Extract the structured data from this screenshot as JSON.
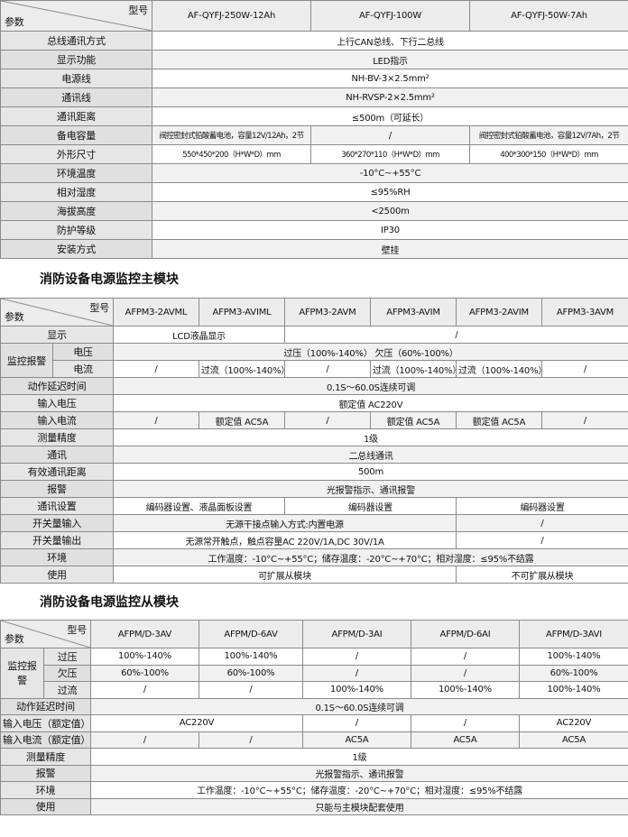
{
  "tables": [
    {
      "model_label": "型号",
      "param_label": "参数",
      "models": [
        "AF-QYFJ-250W-12Ah",
        "AF-QYFJ-100W",
        "AF-QYFJ-50W-7Ah"
      ],
      "rows": [
        {
          "label": "总线通讯方式",
          "cells": [
            "上行CAN总线、下行二总线"
          ]
        },
        {
          "label": "显示功能",
          "cells": [
            "LED指示"
          ]
        },
        {
          "label": "电源线",
          "cells": [
            "NH-BV-3×2.5mm²"
          ]
        },
        {
          "label": "通讯线",
          "cells": [
            "NH-RVSP-2×2.5mm²"
          ]
        },
        {
          "label": "通讯距离",
          "cells": [
            "≤500m（可延长）"
          ]
        },
        {
          "label": "备电容量",
          "cells": [
            "阀控密封式铅酸蓄电池，容量12V/12Ah，2节",
            "/",
            "阀控密封式铅酸蓄电池，容量12V/7Ah，2节"
          ]
        },
        {
          "label": "外形尺寸",
          "cells": [
            "550*450*200（H*W*D）mm",
            "360*270*110（H*W*D）mm",
            "400*300*150（H*W*D）mm"
          ]
        },
        {
          "label": "环境温度",
          "cells": [
            "-10°C~+55°C"
          ]
        },
        {
          "label": "相对湿度",
          "cells": [
            "≤95%RH"
          ]
        },
        {
          "label": "海拔高度",
          "cells": [
            "<2500m"
          ]
        },
        {
          "label": "防护等级",
          "cells": [
            "IP30"
          ]
        },
        {
          "label": "安装方式",
          "cells": [
            "壁挂"
          ]
        }
      ]
    },
    {
      "title": "消防设备电源监控主模块",
      "model_label": "型号",
      "param_label": "参数",
      "models": [
        "AFPM3-2AVML",
        "AFPM3-AVIML",
        "AFPM3-2AVM",
        "AFPM3-AVIM",
        "AFPM3-2AVIM",
        "AFPM3-3AVM"
      ],
      "rows": [
        {
          "label": "显示",
          "cells": [
            "LCD液晶显示",
            "/"
          ]
        },
        {
          "group": "监控报警",
          "items": [
            {
              "label": "电压",
              "cells": [
                "过压（100%-140%） 欠压（60%-100%）"
              ]
            },
            {
              "label": "电流",
              "cells": [
                "/",
                "过流（100%-140%）",
                "/",
                "过流（100%-140%）",
                "过流（100%-140%）",
                "/"
              ]
            }
          ]
        },
        {
          "label": "动作延迟时间",
          "cells": [
            "0.1S～60.0S连续可调"
          ]
        },
        {
          "label": "输入电压",
          "cells": [
            "额定值 AC220V"
          ]
        },
        {
          "label": "输入电流",
          "cells": [
            "/",
            "额定值 AC5A",
            "/",
            "额定值 AC5A",
            "额定值 AC5A",
            "/"
          ]
        },
        {
          "label": "测量精度",
          "cells": [
            "1级"
          ]
        },
        {
          "label": "通讯",
          "cells": [
            "二总线通讯"
          ]
        },
        {
          "label": "有效通讯距离",
          "cells": [
            "500m"
          ]
        },
        {
          "label": "报警",
          "cells": [
            "光报警指示、通讯报警"
          ]
        },
        {
          "label": "通讯设置",
          "cells": [
            "编码器设置、液晶面板设置",
            "编码器设置",
            "编码器设置"
          ]
        },
        {
          "label": "开关量输入",
          "cells": [
            "无源干接点输入方式:内置电源",
            "/"
          ]
        },
        {
          "label": "开关量输出",
          "cells": [
            "无源常开触点，触点容量AC 220V/1A,DC 30V/1A",
            "/"
          ]
        },
        {
          "label": "环境",
          "cells": [
            "工作温度：-10°C~+55°C；储存温度：-20°C~+70°C；相对湿度：≤95%不结露"
          ]
        },
        {
          "label": "使用",
          "cells": [
            "可扩展从模块",
            "不可扩展从模块"
          ]
        }
      ]
    },
    {
      "title": "消防设备电源监控从模块",
      "model_label": "型号",
      "param_label": "参数",
      "models": [
        "AFPM/D-3AV",
        "AFPM/D-6AV",
        "AFPM/D-3AI",
        "AFPM/D-6AI",
        "AFPM/D-3AVI"
      ],
      "rows": [
        {
          "group": "监控报警",
          "items": [
            {
              "label": "过压",
              "cells": [
                "100%-140%",
                "100%-140%",
                "/",
                "/",
                "100%-140%"
              ]
            },
            {
              "label": "欠压",
              "cells": [
                "60%-100%",
                "60%-100%",
                "/",
                "/",
                "60%-100%"
              ]
            },
            {
              "label": "过流",
              "cells": [
                "/",
                "/",
                "100%-140%",
                "100%-140%",
                "100%-140%"
              ]
            }
          ]
        },
        {
          "label": "动作延迟时间",
          "cells": [
            "0.1S～60.0S连续可调"
          ]
        },
        {
          "label": "输入电压（额定值）",
          "cells": [
            "AC220V",
            "/",
            "/",
            "AC220V"
          ]
        },
        {
          "label": "输入电流（额定值）",
          "cells": [
            "/",
            "/",
            "AC5A",
            "AC5A",
            "AC5A"
          ]
        },
        {
          "label": "测量精度",
          "cells": [
            "1级"
          ]
        },
        {
          "label": "报警",
          "cells": [
            "光报警指示、通讯报警"
          ]
        },
        {
          "label": "环境",
          "cells": [
            "工作温度：-10°C~+55°C；储存温度：-20°C~+70°C；相对湿度：≤95%不结露"
          ]
        },
        {
          "label": "使用",
          "cells": [
            "只能与主模块配套使用"
          ]
        }
      ]
    }
  ]
}
